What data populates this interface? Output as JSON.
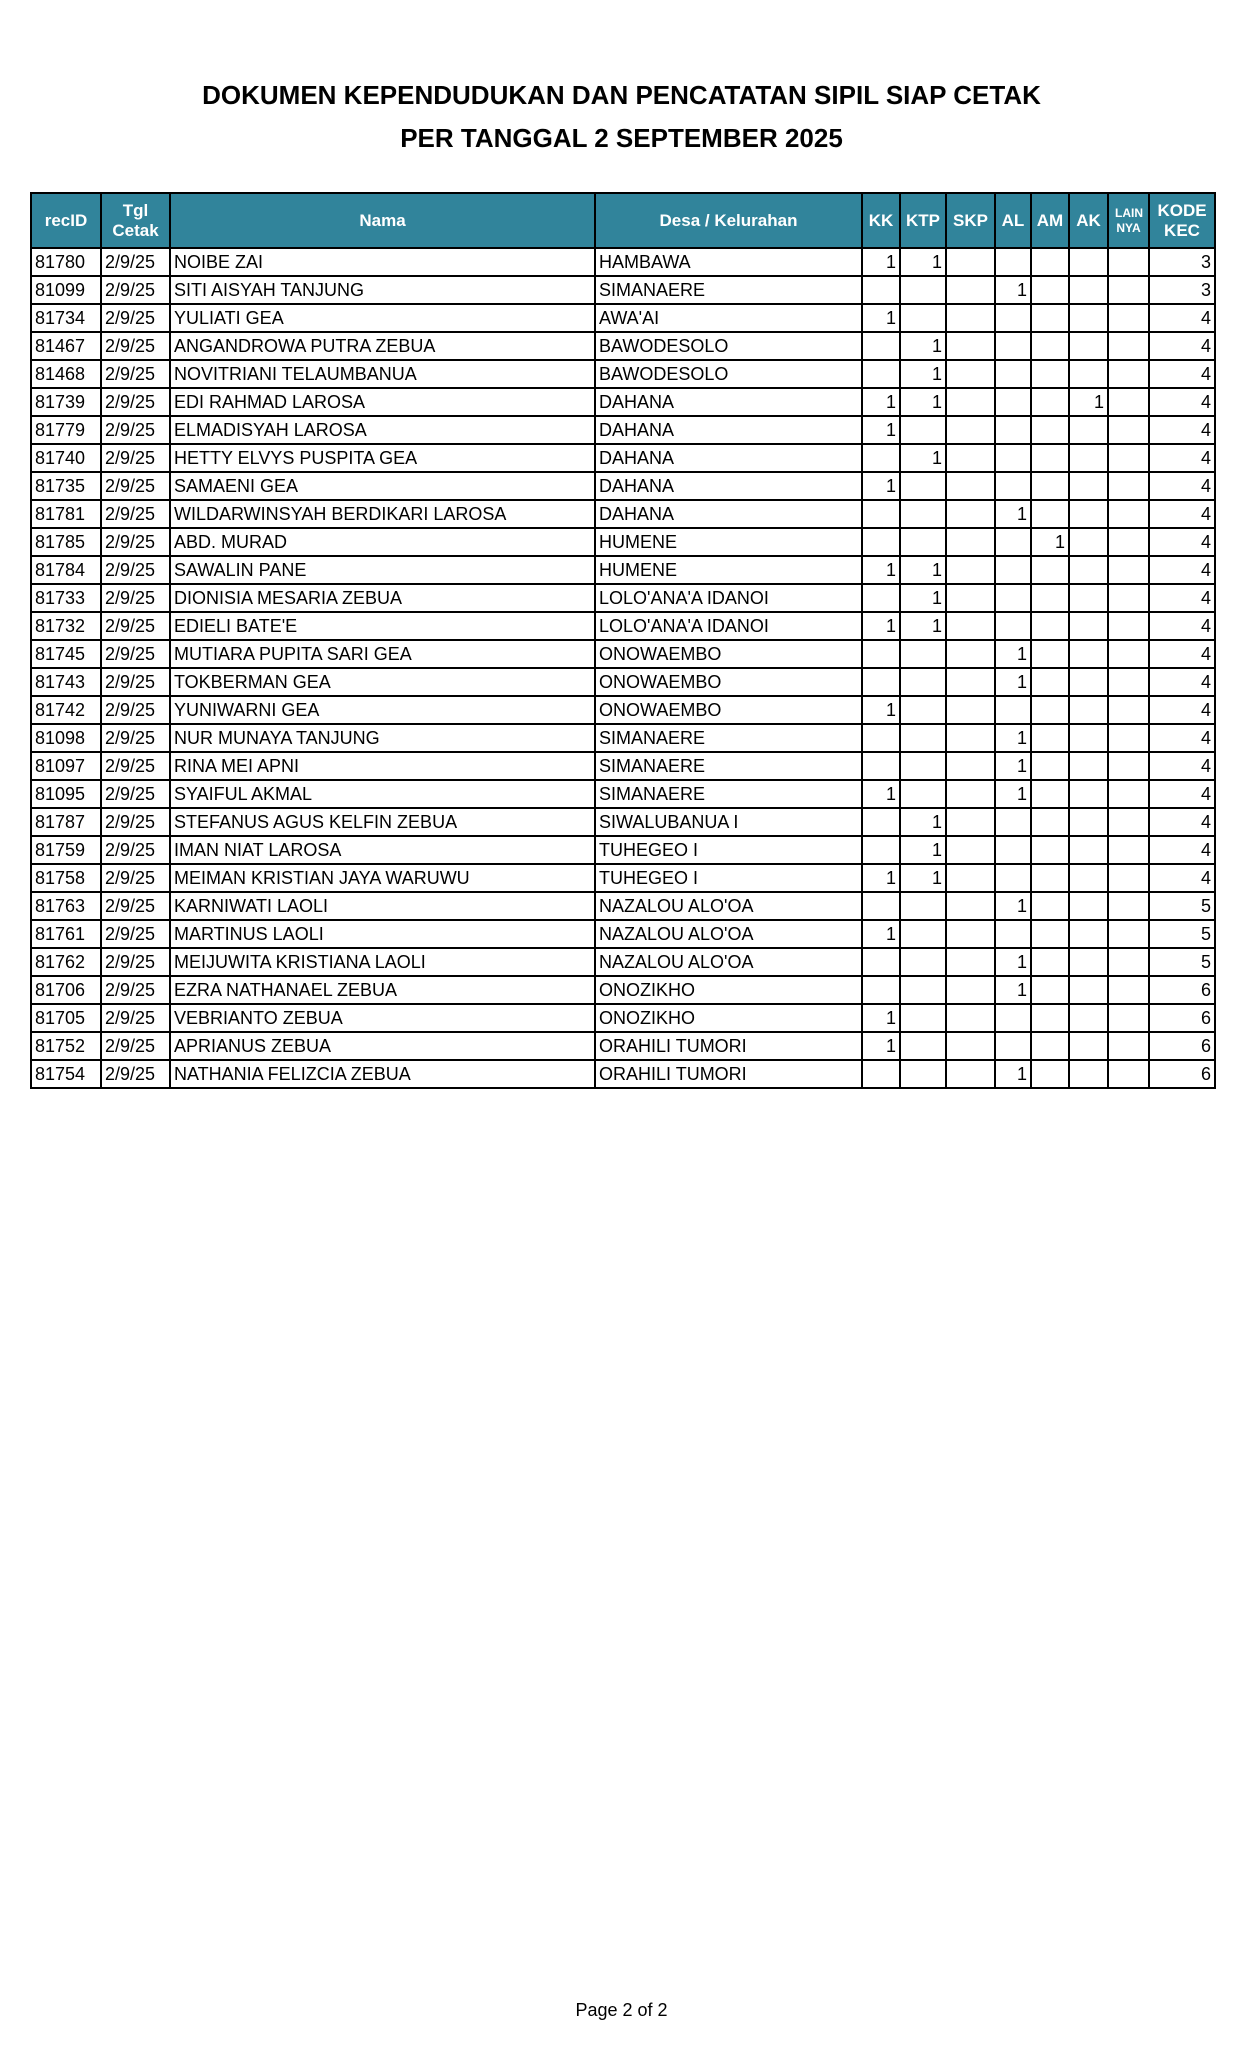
{
  "header": {
    "title_line1": "DOKUMEN KEPENDUDUKAN DAN PENCATATAN SIPIL  SIAP CETAK",
    "title_line2": "PER TANGGAL 2 SEPTEMBER 2025"
  },
  "table": {
    "header_color": "#31849b",
    "columns": [
      "recID",
      "Tgl Cetak",
      "Nama",
      "Desa / Kelurahan",
      "KK",
      "KTP",
      "SKP",
      "AL",
      "AM",
      "AK",
      "LAIN NYA",
      "KODE KEC"
    ],
    "rows": [
      [
        "81780",
        "2/9/25",
        "NOIBE ZAI",
        "HAMBAWA",
        "1",
        "1",
        "",
        "",
        "",
        "",
        "",
        "3"
      ],
      [
        "81099",
        "2/9/25",
        "SITI AISYAH TANJUNG",
        "SIMANAERE",
        "",
        "",
        "",
        "1",
        "",
        "",
        "",
        "3"
      ],
      [
        "81734",
        "2/9/25",
        "YULIATI GEA",
        "AWA'AI",
        "1",
        "",
        "",
        "",
        "",
        "",
        "",
        "4"
      ],
      [
        "81467",
        "2/9/25",
        "ANGANDROWA PUTRA ZEBUA",
        "BAWODESOLO",
        "",
        "1",
        "",
        "",
        "",
        "",
        "",
        "4"
      ],
      [
        "81468",
        "2/9/25",
        "NOVITRIANI TELAUMBANUA",
        "BAWODESOLO",
        "",
        "1",
        "",
        "",
        "",
        "",
        "",
        "4"
      ],
      [
        "81739",
        "2/9/25",
        "EDI RAHMAD LAROSA",
        "DAHANA",
        "1",
        "1",
        "",
        "",
        "",
        "1",
        "",
        "4"
      ],
      [
        "81779",
        "2/9/25",
        "ELMADISYAH LAROSA",
        "DAHANA",
        "1",
        "",
        "",
        "",
        "",
        "",
        "",
        "4"
      ],
      [
        "81740",
        "2/9/25",
        "HETTY ELVYS PUSPITA GEA",
        "DAHANA",
        "",
        "1",
        "",
        "",
        "",
        "",
        "",
        "4"
      ],
      [
        "81735",
        "2/9/25",
        "SAMAENI GEA",
        "DAHANA",
        "1",
        "",
        "",
        "",
        "",
        "",
        "",
        "4"
      ],
      [
        "81781",
        "2/9/25",
        "WILDARWINSYAH BERDIKARI LAROSA",
        "DAHANA",
        "",
        "",
        "",
        "1",
        "",
        "",
        "",
        "4"
      ],
      [
        "81785",
        "2/9/25",
        "ABD. MURAD",
        "HUMENE",
        "",
        "",
        "",
        "",
        "1",
        "",
        "",
        "4"
      ],
      [
        "81784",
        "2/9/25",
        "SAWALIN PANE",
        "HUMENE",
        "1",
        "1",
        "",
        "",
        "",
        "",
        "",
        "4"
      ],
      [
        "81733",
        "2/9/25",
        "DIONISIA MESARIA ZEBUA",
        "LOLO'ANA'A IDANOI",
        "",
        "1",
        "",
        "",
        "",
        "",
        "",
        "4"
      ],
      [
        "81732",
        "2/9/25",
        "EDIELI BATE'E",
        "LOLO'ANA'A IDANOI",
        "1",
        "1",
        "",
        "",
        "",
        "",
        "",
        "4"
      ],
      [
        "81745",
        "2/9/25",
        "MUTIARA PUPITA SARI GEA",
        "ONOWAEMBO",
        "",
        "",
        "",
        "1",
        "",
        "",
        "",
        "4"
      ],
      [
        "81743",
        "2/9/25",
        "TOKBERMAN GEA",
        "ONOWAEMBO",
        "",
        "",
        "",
        "1",
        "",
        "",
        "",
        "4"
      ],
      [
        "81742",
        "2/9/25",
        "YUNIWARNI GEA",
        "ONOWAEMBO",
        "1",
        "",
        "",
        "",
        "",
        "",
        "",
        "4"
      ],
      [
        "81098",
        "2/9/25",
        "NUR MUNAYA TANJUNG",
        "SIMANAERE",
        "",
        "",
        "",
        "1",
        "",
        "",
        "",
        "4"
      ],
      [
        "81097",
        "2/9/25",
        "RINA MEI APNI",
        "SIMANAERE",
        "",
        "",
        "",
        "1",
        "",
        "",
        "",
        "4"
      ],
      [
        "81095",
        "2/9/25",
        "SYAIFUL AKMAL",
        "SIMANAERE",
        "1",
        "",
        "",
        "1",
        "",
        "",
        "",
        "4"
      ],
      [
        "81787",
        "2/9/25",
        "STEFANUS AGUS KELFIN ZEBUA",
        "SIWALUBANUA I",
        "",
        "1",
        "",
        "",
        "",
        "",
        "",
        "4"
      ],
      [
        "81759",
        "2/9/25",
        "IMAN NIAT LAROSA",
        "TUHEGEO I",
        "",
        "1",
        "",
        "",
        "",
        "",
        "",
        "4"
      ],
      [
        "81758",
        "2/9/25",
        "MEIMAN KRISTIAN JAYA WARUWU",
        "TUHEGEO I",
        "1",
        "1",
        "",
        "",
        "",
        "",
        "",
        "4"
      ],
      [
        "81763",
        "2/9/25",
        "KARNIWATI LAOLI",
        "NAZALOU ALO'OA",
        "",
        "",
        "",
        "1",
        "",
        "",
        "",
        "5"
      ],
      [
        "81761",
        "2/9/25",
        "MARTINUS LAOLI",
        "NAZALOU ALO'OA",
        "1",
        "",
        "",
        "",
        "",
        "",
        "",
        "5"
      ],
      [
        "81762",
        "2/9/25",
        "MEIJUWITA KRISTIANA LAOLI",
        "NAZALOU ALO'OA",
        "",
        "",
        "",
        "1",
        "",
        "",
        "",
        "5"
      ],
      [
        "81706",
        "2/9/25",
        "EZRA NATHANAEL ZEBUA",
        "ONOZIKHO",
        "",
        "",
        "",
        "1",
        "",
        "",
        "",
        "6"
      ],
      [
        "81705",
        "2/9/25",
        "VEBRIANTO ZEBUA",
        "ONOZIKHO",
        "1",
        "",
        "",
        "",
        "",
        "",
        "",
        "6"
      ],
      [
        "81752",
        "2/9/25",
        "APRIANUS ZEBUA",
        "ORAHILI TUMORI",
        "1",
        "",
        "",
        "",
        "",
        "",
        "",
        "6"
      ],
      [
        "81754",
        "2/9/25",
        "NATHANIA FELIZCIA ZEBUA",
        "ORAHILI TUMORI",
        "",
        "",
        "",
        "1",
        "",
        "",
        "",
        "6"
      ]
    ]
  },
  "footer": {
    "page_label": "Page 2 of 2"
  }
}
